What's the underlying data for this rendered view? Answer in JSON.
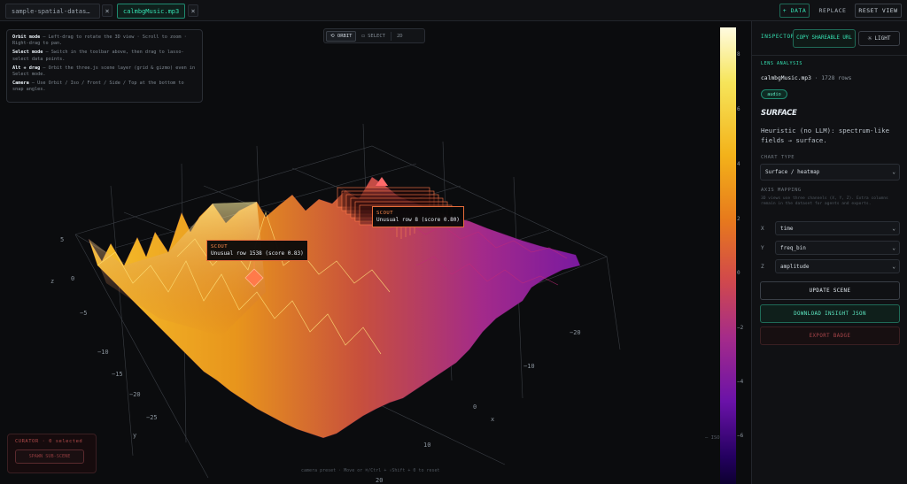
{
  "tabs": [
    {
      "label": "sample-spatial-datas…",
      "active": false
    },
    {
      "label": "calmbgMusic.mp3",
      "active": true
    }
  ],
  "tab_close_glyph": "×",
  "top_actions": {
    "add_data": "+ DATA",
    "replace": "REPLACE",
    "reset_view": "RESET VIEW"
  },
  "help": {
    "orbit_title": "Orbit mode",
    "orbit_text": " — Left-drag to rotate the 3D view · Scroll to zoom · Right-drag to pan.",
    "select_title": "Select mode",
    "select_text": " — Switch in the toolbar above, then drag to lasso-select data points.",
    "alt_title": "Alt + drag",
    "alt_text": " — Orbit the three.js scene layer (grid & gizmo) even in Select mode.",
    "camera_title": "Camera",
    "camera_text": " — Use Orbit / Iso / Front / Side / Top at the bottom to snap angles."
  },
  "view_toolbar": {
    "orbit": "⟲ ORBIT",
    "select": "◻ SELECT",
    "mode_2d": "2D"
  },
  "axes": {
    "z_label": "z",
    "y_label": "y",
    "x_label": "x",
    "z_ticks": [
      "5",
      "0",
      "−5"
    ],
    "y_ticks": [
      "−10",
      "−15",
      "−20"
    ],
    "x_ticks": [
      "−20",
      "−10",
      "0",
      "10",
      "20"
    ],
    "left_ticks": [
      "10",
      "0",
      "−10",
      "−15",
      "−20",
      "−25"
    ]
  },
  "colorbar_ticks": [
    "8",
    "6",
    "4",
    "2",
    "0",
    "−2",
    "−4",
    "−6"
  ],
  "tooltips": [
    {
      "head": "SCOUT",
      "body": "Unusual row 1538 (score 0.83)"
    },
    {
      "head": "SCOUT",
      "body": "Unusual row 8 (score 0.80)"
    }
  ],
  "curator": {
    "title": "CURATOR · 0 selected",
    "button": "SPAWN SUB-SCENE"
  },
  "bottom_hint": "camera preset · Move or ⌘/Ctrl + ⇧Shift + 0 to reset",
  "corner_hint": "— ISO",
  "inspector": {
    "title": "INSPECTOR",
    "share": "COPY SHAREABLE URL",
    "light": "LIGHT",
    "lens_section": "LENS ANALYSIS",
    "file_name": "calmbgMusic.mp3",
    "file_rows": " · 1728 rows",
    "badge": "audio",
    "heading": "SURFACE",
    "description": "Heuristic (no LLM): spectrum-like fields → surface.",
    "chart_type_label": "CHART TYPE",
    "chart_type_value": "Surface / heatmap",
    "axis_mapping_label": "AXIS MAPPING",
    "axis_note": "3D views use three channels (X, Y, Z). Extra columns remain in the dataset for agents and exports.",
    "x_label": "X",
    "x_value": "time",
    "y_label": "Y",
    "y_value": "freq_bin",
    "z_label": "Z",
    "z_value": "amplitude",
    "update_scene": "UPDATE SCENE",
    "download": "DOWNLOAD INSIGHT JSON",
    "export": "EXPORT BADGE"
  },
  "colors": {
    "accent": "#35e0b1",
    "scout": "#ff8a4c",
    "danger": "#a8454a"
  }
}
